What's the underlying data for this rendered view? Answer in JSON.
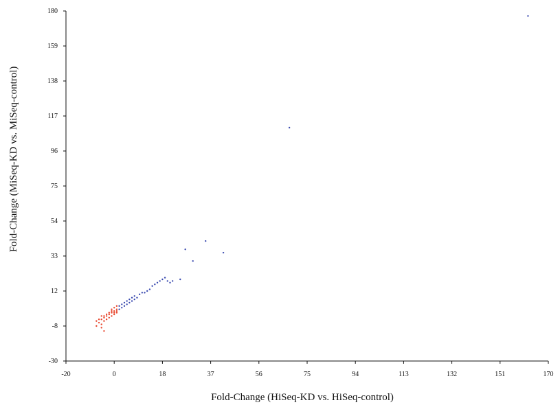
{
  "chart_data": {
    "type": "scatter",
    "title": "",
    "xlabel": "Fold-Change (HiSeq-KD vs. HiSeq-control)",
    "ylabel": "Fold-Change (MiSeq-KD vs. MiSeq-control)",
    "xlim": [
      -20,
      170
    ],
    "ylim": [
      -30,
      180
    ],
    "x_ticks": [
      "-20",
      "0",
      "18",
      "37",
      "56",
      "75",
      "94",
      "113",
      "132",
      "151",
      "170"
    ],
    "y_ticks": [
      "-30",
      "-8",
      "12",
      "33",
      "54",
      "75",
      "96",
      "117",
      "138",
      "159",
      "180"
    ],
    "grid": false,
    "legend": "none",
    "series": [
      {
        "color": "#e8452c",
        "points": [
          [
            -8,
            -9
          ],
          [
            -7,
            -7
          ],
          [
            -6,
            -8
          ],
          [
            -6,
            -5
          ],
          [
            -5,
            -6
          ],
          [
            -5,
            -4
          ],
          [
            -4,
            -3
          ],
          [
            -4,
            -5
          ],
          [
            -3,
            -2
          ],
          [
            -3,
            -4
          ],
          [
            -2,
            -1
          ],
          [
            -2,
            -3
          ],
          [
            -1,
            0
          ],
          [
            -1,
            -2
          ],
          [
            -1,
            2
          ],
          [
            0,
            1
          ],
          [
            0,
            -1
          ],
          [
            0,
            3
          ],
          [
            -2,
            0
          ],
          [
            -3,
            -1
          ],
          [
            -4,
            -2
          ],
          [
            -5,
            -3
          ],
          [
            -6,
            -3
          ],
          [
            -7,
            -5
          ],
          [
            -8,
            -6
          ],
          [
            -6,
            -10
          ],
          [
            -5,
            -12
          ],
          [
            -2,
            1
          ],
          [
            -1,
            -1
          ],
          [
            0,
            0
          ]
        ]
      },
      {
        "color": "#3b4bb0",
        "points": [
          [
            1,
            1
          ],
          [
            1,
            3
          ],
          [
            2,
            2
          ],
          [
            2,
            4
          ],
          [
            3,
            3
          ],
          [
            3,
            5
          ],
          [
            4,
            4
          ],
          [
            4,
            6
          ],
          [
            5,
            5
          ],
          [
            5,
            7
          ],
          [
            6,
            6
          ],
          [
            6,
            8
          ],
          [
            7,
            7
          ],
          [
            7,
            9
          ],
          [
            8,
            8
          ],
          [
            9,
            10
          ],
          [
            10,
            11
          ],
          [
            11,
            11
          ],
          [
            12,
            12
          ],
          [
            13,
            13
          ],
          [
            14,
            15
          ],
          [
            15,
            16
          ],
          [
            16,
            17
          ],
          [
            17,
            18
          ],
          [
            18,
            19
          ],
          [
            19,
            20
          ],
          [
            20,
            18
          ],
          [
            21,
            17
          ],
          [
            22,
            18
          ],
          [
            25,
            19
          ],
          [
            27,
            37
          ],
          [
            30,
            30
          ],
          [
            35,
            42
          ],
          [
            42,
            35
          ],
          [
            68,
            110
          ],
          [
            162,
            177
          ]
        ]
      }
    ]
  }
}
